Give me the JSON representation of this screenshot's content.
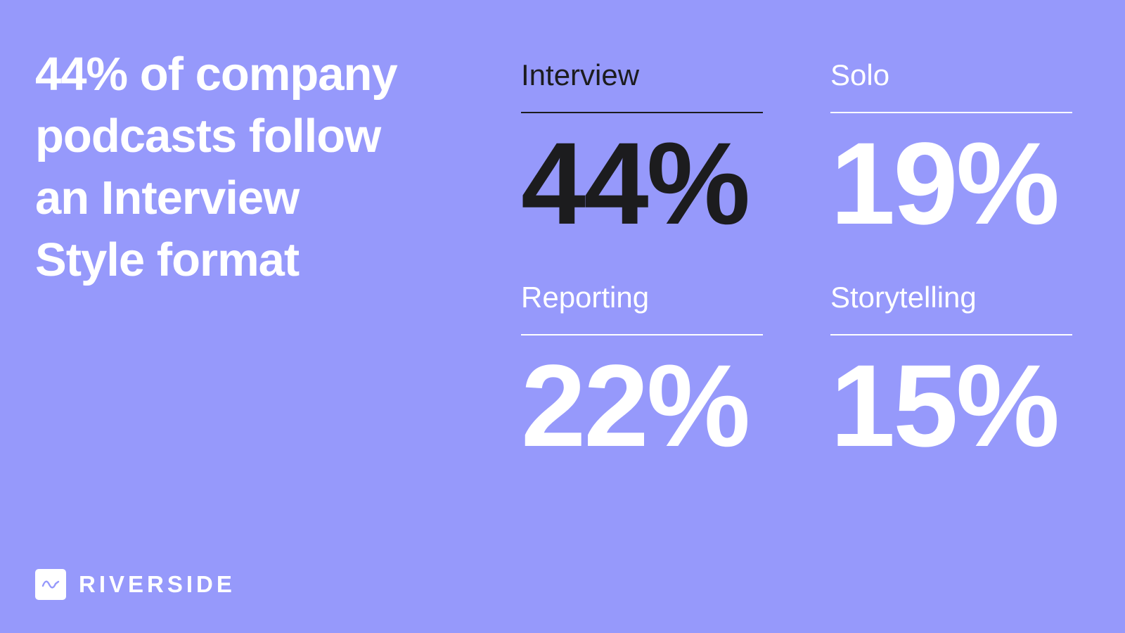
{
  "colors": {
    "background": "#9699fb",
    "highlight": "#1c1c1e",
    "text": "#ffffff"
  },
  "headline": {
    "lines": [
      "44% of company",
      "podcasts follow",
      "an Interview",
      "Style format"
    ]
  },
  "stats": [
    {
      "label": "Interview",
      "value": "44%",
      "highlighted": true
    },
    {
      "label": "Solo",
      "value": "19%",
      "highlighted": false
    },
    {
      "label": "Reporting",
      "value": "22%",
      "highlighted": false
    },
    {
      "label": "Storytelling",
      "value": "15%",
      "highlighted": false
    }
  ],
  "brand": {
    "name": "RIVERSIDE",
    "icon": "waveform-icon"
  }
}
